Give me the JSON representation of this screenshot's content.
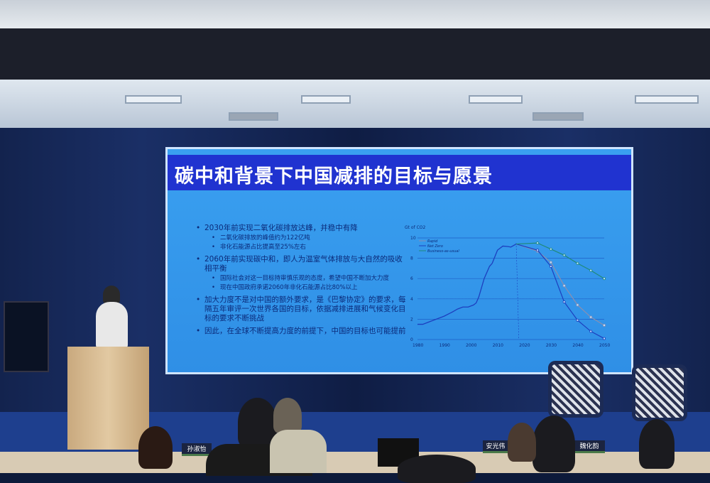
{
  "slide": {
    "title": "碳中和背景下中国减排的目标与愿景",
    "bullets": [
      {
        "text": "2030年前实现二氧化碳排放达峰，并稳中有降",
        "sub": [
          "二氧化碳排放的峰值约为122亿吨",
          "非化石能源占比提高至25%左右"
        ]
      },
      {
        "text": "2060年前实现碳中和，即人为温室气体排放与大自然的吸收相平衡",
        "sub": [
          "国际社会对这一目标持审慎乐观的态度，希望中国不断加大力度",
          "现在中国政府承诺2060年非化石能源占比80%以上"
        ]
      },
      {
        "text": "加大力度不是对中国的额外要求，是《巴黎协定》的要求，每隔五年审评一次世界各国的目标，依据减排进展和气候变化目标的要求不断挑战",
        "sub": []
      },
      {
        "text": "因此，在全球不断提高力度的前提下，中国的目标也可能提前",
        "sub": []
      }
    ]
  },
  "chart_data": {
    "type": "line",
    "ylabel": "Gt of CO2",
    "ylim": [
      0,
      10
    ],
    "xlim": [
      1980,
      2050
    ],
    "yticks": [
      0,
      2,
      4,
      6,
      8,
      10
    ],
    "xticks": [
      1980,
      1990,
      2000,
      2010,
      2020,
      2030,
      2040,
      2050
    ],
    "grid": true,
    "legend_position": "top-left",
    "historical": {
      "x": [
        1980,
        1982,
        1985,
        1988,
        1990,
        1993,
        1995,
        1997,
        1999,
        2001,
        2002,
        2003,
        2005,
        2007,
        2008,
        2010,
        2012,
        2014,
        2015,
        2017
      ],
      "y": [
        1.5,
        1.5,
        1.8,
        2.1,
        2.3,
        2.7,
        3.0,
        3.2,
        3.2,
        3.4,
        3.6,
        4.2,
        6.0,
        7.2,
        7.5,
        8.8,
        9.2,
        9.15,
        9.1,
        9.4
      ]
    },
    "series": [
      {
        "name": "Rapid",
        "color": "#8a8fb0",
        "x": [
          2017,
          2025,
          2030,
          2035,
          2040,
          2045,
          2050
        ],
        "y": [
          9.4,
          8.7,
          7.6,
          5.3,
          3.4,
          2.2,
          1.4
        ]
      },
      {
        "name": "Net Zero",
        "color": "#1d3fbf",
        "x": [
          2017,
          2025,
          2030,
          2035,
          2040,
          2045,
          2050
        ],
        "y": [
          9.4,
          8.8,
          7.2,
          3.7,
          1.9,
          0.8,
          0.1
        ]
      },
      {
        "name": "Business-as-usual",
        "color": "#1f8a7a",
        "x": [
          2017,
          2025,
          2030,
          2035,
          2040,
          2045,
          2050
        ],
        "y": [
          9.4,
          9.5,
          8.9,
          8.3,
          7.5,
          6.8,
          6.0
        ]
      }
    ]
  },
  "name_cards": [
    "孙淑怡",
    "安光伟",
    "魏化韵"
  ]
}
